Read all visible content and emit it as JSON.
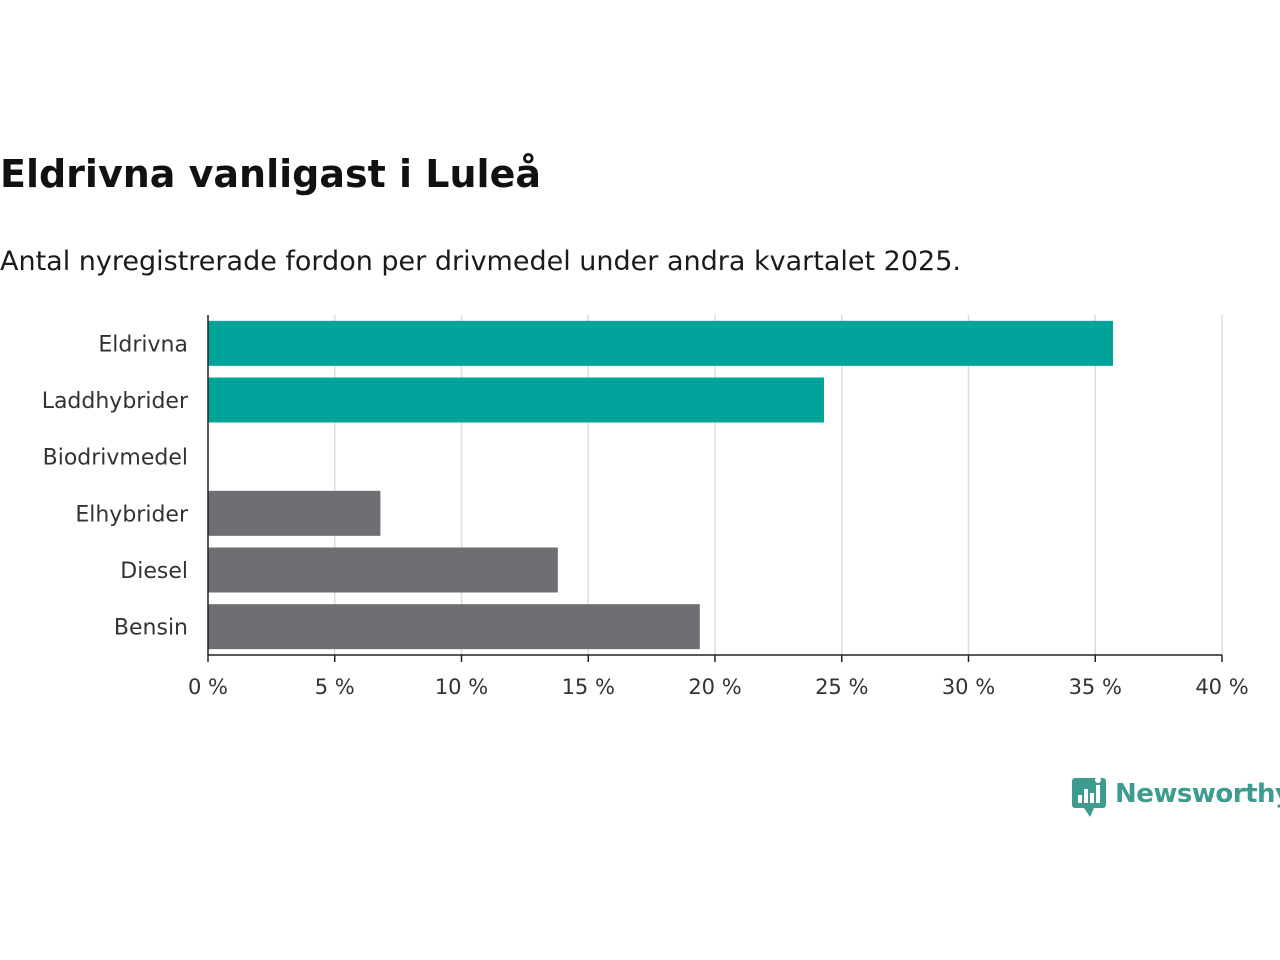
{
  "title": "Eldrivna vanligast i Luleå",
  "subtitle": "Antal nyregistrerade fordon per drivmedel under andra kvartalet 2025.",
  "brand": {
    "name": "Newsworthy",
    "icon": "newsworthy-logo-icon",
    "color": "#3d9b8f"
  },
  "chart_data": {
    "type": "bar",
    "orientation": "horizontal",
    "categories": [
      "Eldrivna",
      "Laddhybrider",
      "Biodrivmedel",
      "Elhybrider",
      "Diesel",
      "Bensin"
    ],
    "values": [
      35.7,
      24.3,
      0,
      6.8,
      13.8,
      19.4
    ],
    "colors": [
      "#00a39a",
      "#00a39a",
      "#00a39a",
      "#6e6e73",
      "#6e6e73",
      "#6e6e73"
    ],
    "xlim": [
      0,
      40
    ],
    "xticks": [
      0,
      5,
      10,
      15,
      20,
      25,
      30,
      35,
      40
    ],
    "tick_suffix": " %",
    "grid": "vertical",
    "grid_color": "#dddddd",
    "legend": "none"
  }
}
